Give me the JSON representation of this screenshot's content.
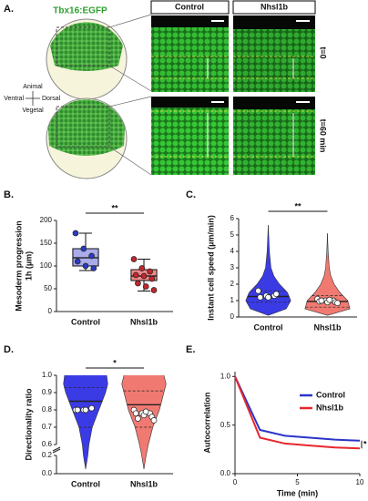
{
  "panel_a": {
    "label": "A.",
    "title": "Tbx16:EGFP",
    "axes": {
      "animal": "Animal",
      "ventral": "Ventral",
      "dorsal": "Dorsal",
      "vegetal": "Vegetal"
    },
    "columns": [
      "Control",
      "Nhsl1b"
    ],
    "rows": [
      "t=0",
      "t=60 min"
    ]
  },
  "chart_data": [
    {
      "type": "box",
      "panel_label": "B.",
      "y_label": [
        "Mesoderm progression",
        "1h (µm)"
      ],
      "categories": [
        "Control",
        "Nhsl1b"
      ],
      "ylim": [
        0,
        200
      ],
      "yticks": [
        0,
        50,
        100,
        150,
        200
      ],
      "significance": "**",
      "series": [
        {
          "color": "#a9abea",
          "point_color": "#2b3bbf",
          "min": 90,
          "q1": 100,
          "median": 118,
          "q3": 138,
          "max": 172,
          "points": [
            172,
            138,
            122,
            110,
            100,
            95
          ]
        },
        {
          "color": "#f08a8a",
          "point_color": "#c0272d",
          "min": 45,
          "q1": 68,
          "median": 78,
          "q3": 92,
          "max": 115,
          "points": [
            115,
            95,
            88,
            80,
            78,
            72,
            62,
            55,
            47
          ]
        }
      ]
    },
    {
      "type": "violin",
      "panel_label": "C.",
      "y_label": [
        "Instant cell speed (µm/min)"
      ],
      "categories": [
        "Control",
        "Nhsl1b"
      ],
      "ylim": [
        0,
        6
      ],
      "yticks": [
        0,
        1,
        2,
        3,
        4,
        5,
        6
      ],
      "significance": "**",
      "series": [
        {
          "color": "#3b3be6",
          "point_color": "#ffffff",
          "q1": 0.9,
          "median": 1.25,
          "q3": 1.6,
          "density_y": [
            0.1,
            0.5,
            1,
            1.5,
            2,
            2.5,
            3,
            4,
            5,
            5.6
          ],
          "density": [
            0,
            0.8,
            1,
            0.85,
            0.5,
            0.25,
            0.12,
            0.05,
            0.02,
            0
          ],
          "points": [
            1.6,
            1.3,
            1.3,
            1.2,
            1.2,
            1.4
          ]
        },
        {
          "color": "#f07a72",
          "point_color": "#ffffff",
          "q1": 0.6,
          "median": 0.95,
          "q3": 1.3,
          "density_y": [
            0.1,
            0.5,
            1,
            1.5,
            2,
            2.5,
            3,
            4,
            5.1
          ],
          "density": [
            0,
            1,
            0.9,
            0.55,
            0.3,
            0.15,
            0.08,
            0.03,
            0
          ],
          "points": [
            1.1,
            1.0,
            1.0,
            0.95,
            0.9,
            0.9,
            1.0,
            1.05,
            0.85
          ]
        }
      ]
    },
    {
      "type": "violin",
      "panel_label": "D.",
      "y_label": [
        "Directionality ratio"
      ],
      "categories": [
        "Control",
        "Nhsl1b"
      ],
      "ylim": [
        0,
        1.0
      ],
      "axis_break": [
        0.2,
        0.6
      ],
      "yticks": [
        {
          "value": 0,
          "label": "0.0"
        },
        {
          "value": 0.2,
          "label": "0.2"
        },
        {
          "value": 0.6,
          "label": "0.6"
        },
        {
          "value": 0.7,
          "label": "0.7"
        },
        {
          "value": 0.8,
          "label": "0.8"
        },
        {
          "value": 0.9,
          "label": "0.9"
        },
        {
          "value": 1.0,
          "label": "1.0"
        }
      ],
      "significance": "*",
      "series": [
        {
          "color": "#3b3be6",
          "point_color": "#ffffff",
          "q1": 0.7,
          "median": 0.85,
          "q3": 0.93,
          "density_y": [
            0.05,
            0.2,
            0.6,
            0.7,
            0.8,
            0.9,
            0.95,
            1.0
          ],
          "density": [
            0,
            0.1,
            0.15,
            0.3,
            0.6,
            0.9,
            1,
            0.95
          ],
          "points": [
            0.8,
            0.8,
            0.81,
            0.8,
            0.8
          ]
        },
        {
          "color": "#f07a72",
          "point_color": "#ffffff",
          "q1": 0.7,
          "median": 0.83,
          "q3": 0.91,
          "density_y": [
            0.05,
            0.2,
            0.6,
            0.7,
            0.8,
            0.9,
            0.95,
            1.0
          ],
          "density": [
            0,
            0.1,
            0.2,
            0.4,
            0.7,
            0.9,
            1,
            0.9
          ],
          "points": [
            0.8,
            0.78,
            0.78,
            0.78,
            0.77,
            0.76,
            0.75,
            0.79,
            0.74
          ]
        }
      ]
    },
    {
      "type": "line",
      "panel_label": "E.",
      "x_label": "Time (min)",
      "y_label": [
        "Autocorrelation"
      ],
      "x": [
        0,
        2,
        4,
        6,
        8,
        10
      ],
      "xlim": [
        0,
        10
      ],
      "xticks": [
        0,
        5,
        10
      ],
      "ylim": [
        0,
        1.05
      ],
      "yticks": [
        {
          "value": 0,
          "label": "0.0"
        },
        {
          "value": 0.5,
          "label": "0.5"
        },
        {
          "value": 1.0,
          "label": "1.0"
        }
      ],
      "legend": "upper right",
      "significance": "*",
      "series": [
        {
          "name": "Control",
          "color": "#2b35c9",
          "values": [
            1.0,
            0.45,
            0.39,
            0.37,
            0.35,
            0.34
          ]
        },
        {
          "name": "Nhsl1b",
          "color": "#e8262d",
          "values": [
            1.0,
            0.37,
            0.31,
            0.29,
            0.27,
            0.26
          ]
        }
      ]
    }
  ]
}
